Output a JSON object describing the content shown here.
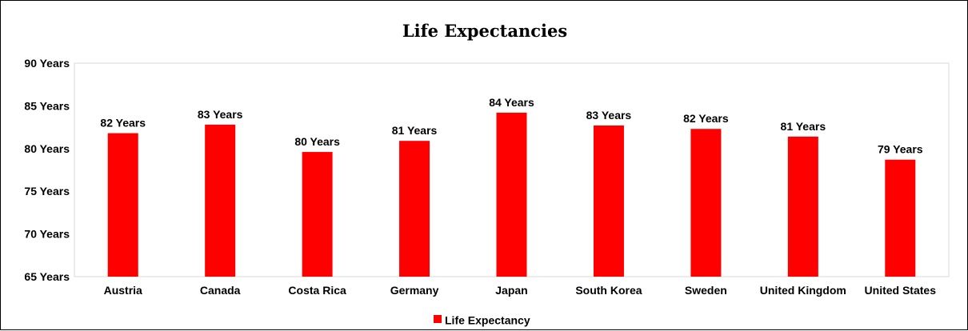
{
  "chart_data": {
    "type": "bar",
    "title": "Life Expectancies",
    "xlabel": "",
    "ylabel": "",
    "categories": [
      "Austria",
      "Canada",
      "Costa Rica",
      "Germany",
      "Japan",
      "South Korea",
      "Sweden",
      "United Kingdom",
      "United States"
    ],
    "series": [
      {
        "name": "Life Expectancy",
        "color": "#ff0000",
        "values": [
          81.8,
          82.8,
          79.6,
          80.9,
          84.2,
          82.7,
          82.3,
          81.4,
          78.7
        ],
        "data_labels": [
          "82 Years",
          "83 Years",
          "80 Years",
          "81 Years",
          "84 Years",
          "83 Years",
          "82 Years",
          "81 Years",
          "79 Years"
        ]
      }
    ],
    "ylim": [
      65,
      90
    ],
    "y_ticks": [
      90,
      85,
      80,
      75,
      70,
      65
    ],
    "y_tick_labels": [
      "90 Years",
      "85 Years",
      "80 Years",
      "75 Years",
      "70 Years",
      "65 Years"
    ],
    "grid": false,
    "legend": "bottom"
  }
}
